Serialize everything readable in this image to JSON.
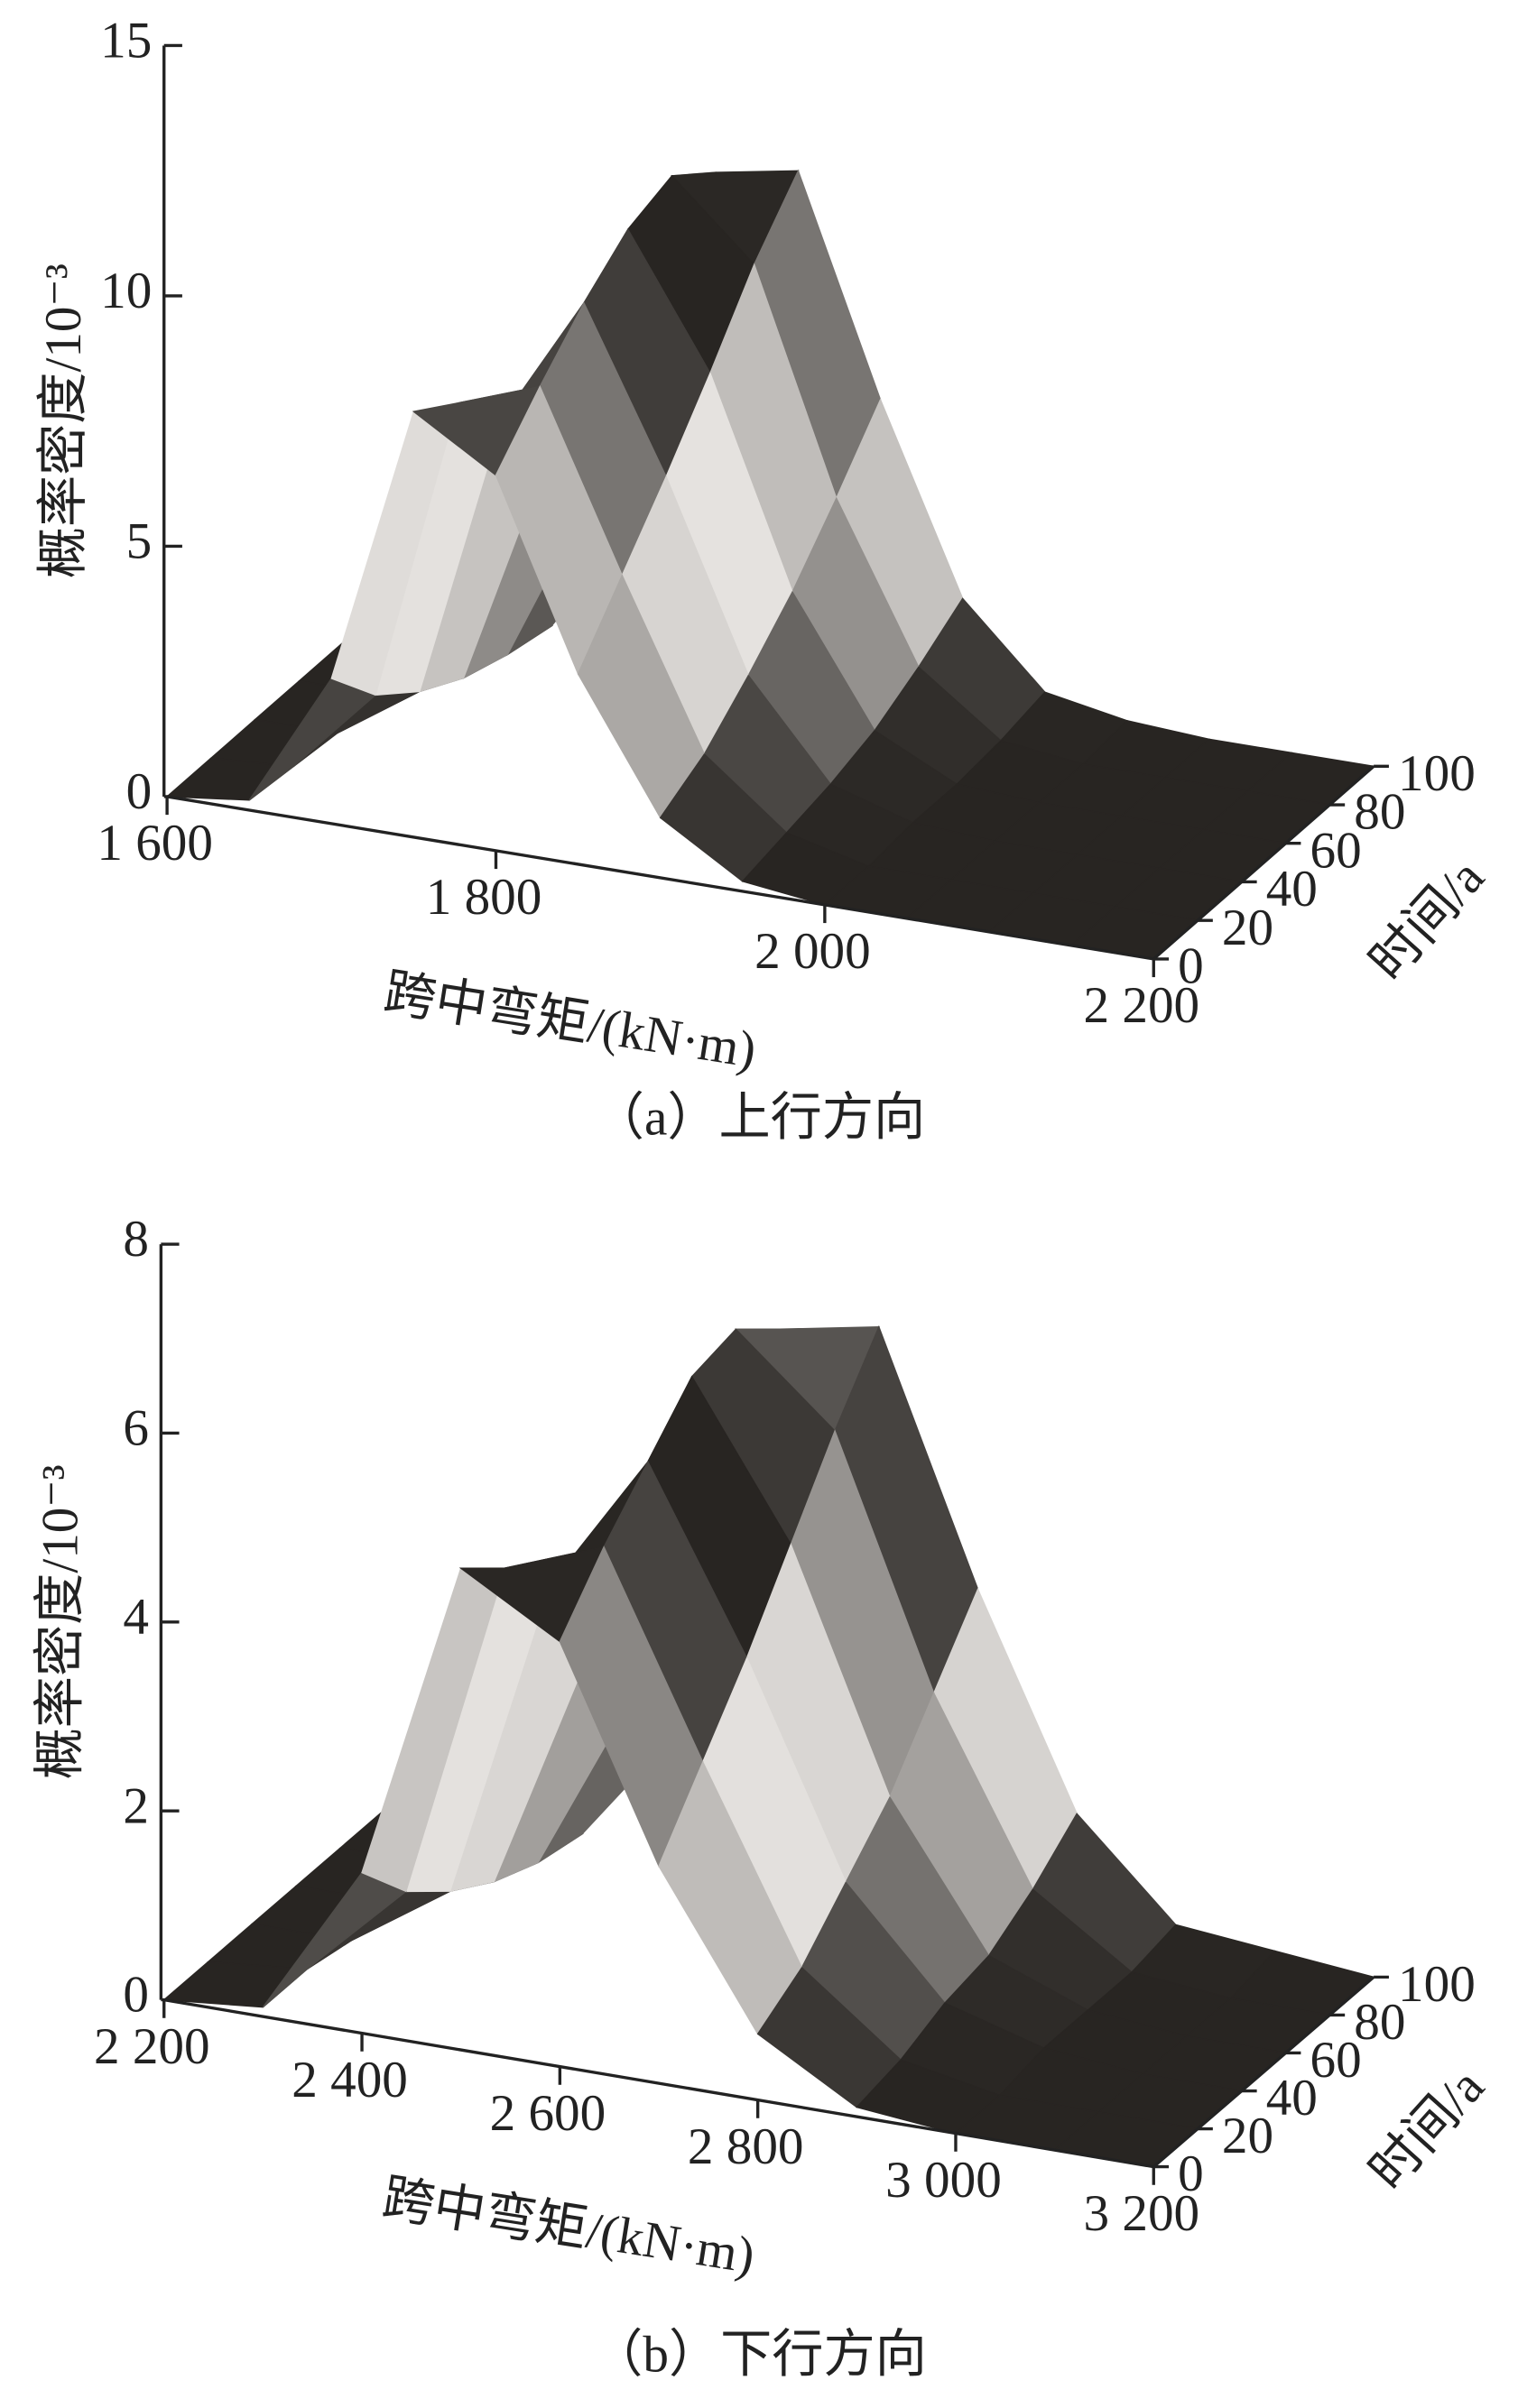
{
  "chart_data": [
    {
      "type": "surface",
      "caption": "（a）上行方向",
      "xlabel": "跨中弯矩/(kN·m)",
      "ylabel": "时间/a",
      "zlabel": "概率密度/10⁻³",
      "xlim": [
        1600,
        2200
      ],
      "xticks": [
        {
          "value": 1600,
          "label": "1 600"
        },
        {
          "value": 1800,
          "label": "1 800"
        },
        {
          "value": 2000,
          "label": "2 000"
        },
        {
          "value": 2200,
          "label": "2 200"
        }
      ],
      "ylim": [
        0,
        100
      ],
      "yticks": [
        0,
        20,
        40,
        60,
        80,
        100
      ],
      "zlim": [
        0,
        15
      ],
      "zticks": [
        0,
        5,
        10,
        15
      ],
      "x": [
        1600,
        1650,
        1700,
        1750,
        1800,
        1850,
        1900,
        1950,
        2000,
        2050,
        2100,
        2150,
        2200
      ],
      "time": [
        0,
        20,
        40,
        60,
        80,
        100
      ],
      "values": [
        [
          0,
          0.2,
          2.9,
          8.5,
          7.5,
          3.8,
          1.2,
          0.2,
          0,
          0,
          0,
          0,
          0
        ],
        [
          0,
          0.1,
          1.8,
          7.9,
          8.5,
          5.0,
          1.7,
          0.4,
          0,
          0,
          0,
          0,
          0
        ],
        [
          0,
          0,
          1.1,
          6.8,
          9.4,
          6.2,
          2.5,
          0.6,
          0.1,
          0,
          0,
          0,
          0
        ],
        [
          0,
          0,
          0.6,
          5.2,
          10.1,
          7.5,
          3.4,
          0.9,
          0.1,
          0,
          0,
          0,
          0
        ],
        [
          0,
          0,
          0.3,
          3.7,
          10.4,
          8.9,
          4.5,
          1.4,
          0.2,
          0,
          0,
          0,
          0
        ],
        [
          0,
          0,
          0.1,
          2.4,
          9.7,
          10.0,
          5.7,
          2.0,
          0.4,
          0.1,
          0,
          0,
          0
        ]
      ]
    },
    {
      "type": "surface",
      "caption": "（b）下行方向",
      "xlabel": "跨中弯矩/(kN·m)",
      "ylabel": "时间/a",
      "zlabel": "概率密度/10⁻³",
      "xlim": [
        2200,
        3200
      ],
      "xticks": [
        {
          "value": 2200,
          "label": "2 200"
        },
        {
          "value": 2400,
          "label": "2 400"
        },
        {
          "value": 2600,
          "label": "2 600"
        },
        {
          "value": 2800,
          "label": "2 800"
        },
        {
          "value": 3000,
          "label": "3 000"
        },
        {
          "value": 3200,
          "label": "3 200"
        }
      ],
      "ylim": [
        0,
        100
      ],
      "yticks": [
        0,
        20,
        40,
        60,
        80,
        100
      ],
      "zlim": [
        0,
        8
      ],
      "zticks": [
        0,
        2,
        4,
        6,
        8
      ],
      "x": [
        2200,
        2300,
        2400,
        2500,
        2600,
        2700,
        2800,
        2900,
        3000,
        3100,
        3200
      ],
      "time": [
        0,
        20,
        40,
        60,
        80,
        100
      ],
      "values": [
        [
          0,
          0.1,
          1.7,
          5.1,
          4.5,
          2.3,
          0.7,
          0.1,
          0,
          0,
          0
        ],
        [
          0,
          0.1,
          1.1,
          4.7,
          5.1,
          3.0,
          1.0,
          0.2,
          0,
          0,
          0
        ],
        [
          0,
          0,
          0.7,
          4.1,
          5.6,
          3.7,
          1.5,
          0.4,
          0.1,
          0,
          0
        ],
        [
          0,
          0,
          0.4,
          3.1,
          6.1,
          4.5,
          2.0,
          0.5,
          0.1,
          0,
          0
        ],
        [
          0,
          0,
          0.2,
          2.2,
          6.2,
          5.3,
          2.7,
          0.8,
          0.1,
          0,
          0
        ],
        [
          0,
          0,
          0.1,
          1.4,
          5.8,
          6.0,
          3.4,
          1.2,
          0.2,
          0.1,
          0
        ]
      ]
    }
  ]
}
